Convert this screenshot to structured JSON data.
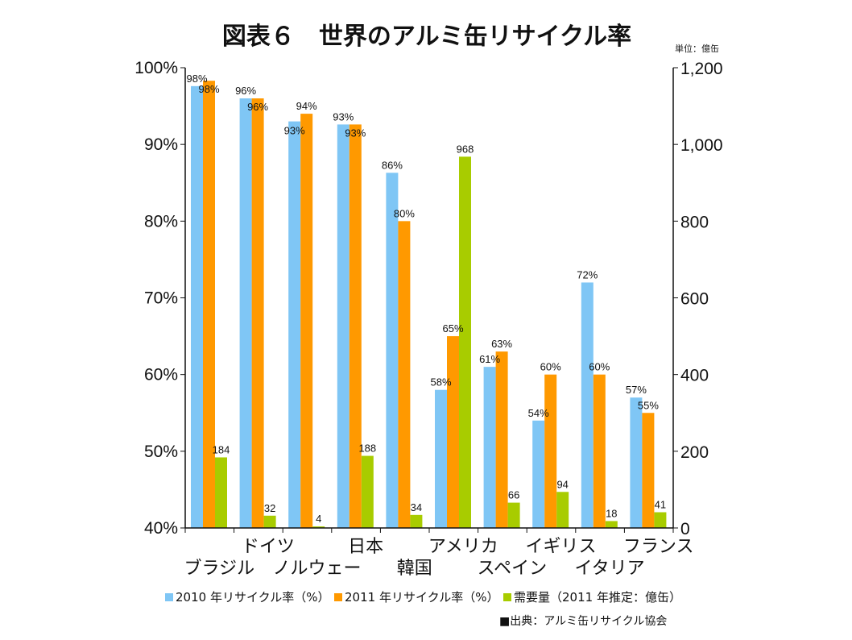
{
  "chart_data": {
    "type": "bar",
    "title": "図表６　世界のアルミ缶リサイクル率",
    "unit_note": "単位：億缶",
    "source": "■出典：アルミ缶リサイクル協会",
    "categories": [
      "ブラジル",
      "ドイツ",
      "ノルウェー",
      "日本",
      "韓国",
      "アメリカ",
      "スペイン",
      "イギリス",
      "イタリア",
      "フランス"
    ],
    "category_rows": [
      1,
      0,
      1,
      0,
      1,
      0,
      1,
      0,
      1,
      0
    ],
    "left_axis": {
      "min": 40,
      "max": 100,
      "ticks": [
        "40%",
        "50%",
        "60%",
        "70%",
        "80%",
        "90%",
        "100%"
      ]
    },
    "right_axis": {
      "min": 0,
      "max": 1200,
      "ticks": [
        "0",
        "200",
        "400",
        "600",
        "800",
        "1,000",
        "1,200"
      ]
    },
    "series": [
      {
        "name": "2010 年リサイクル率（%）",
        "axis": "left",
        "color": "#7fc6f5",
        "values": [
          98,
          96,
          93,
          93,
          86,
          58,
          61,
          54,
          72,
          57
        ],
        "plot_values": [
          97.6,
          96.0,
          93.0,
          92.6,
          86.3,
          58.0,
          61.0,
          54.0,
          72.0,
          57.0
        ],
        "labels": [
          "98%",
          "96%",
          "93%",
          "93%",
          "86%",
          "58%",
          "61%",
          "54%",
          "72%",
          "57%"
        ]
      },
      {
        "name": "2011 年リサイクル率（%）",
        "axis": "left",
        "color": "#ff9900",
        "values": [
          98,
          96,
          94,
          93,
          80,
          65,
          63,
          60,
          60,
          55
        ],
        "plot_values": [
          98.3,
          96.0,
          94.0,
          92.6,
          80.0,
          65.0,
          63.0,
          60.0,
          60.0,
          55.0
        ],
        "labels": [
          "98%",
          "96%",
          "94%",
          "93%",
          "80%",
          "65%",
          "63%",
          "60%",
          "60%",
          "55%"
        ]
      },
      {
        "name": "需要量（2011 年推定：億缶）",
        "axis": "right",
        "color": "#a8cc00",
        "values": [
          184,
          32,
          4,
          188,
          34,
          968,
          66,
          94,
          18,
          41
        ],
        "labels": [
          "184",
          "32",
          "4",
          "188",
          "34",
          "968",
          "66",
          "94",
          "18",
          "41"
        ]
      }
    ]
  }
}
